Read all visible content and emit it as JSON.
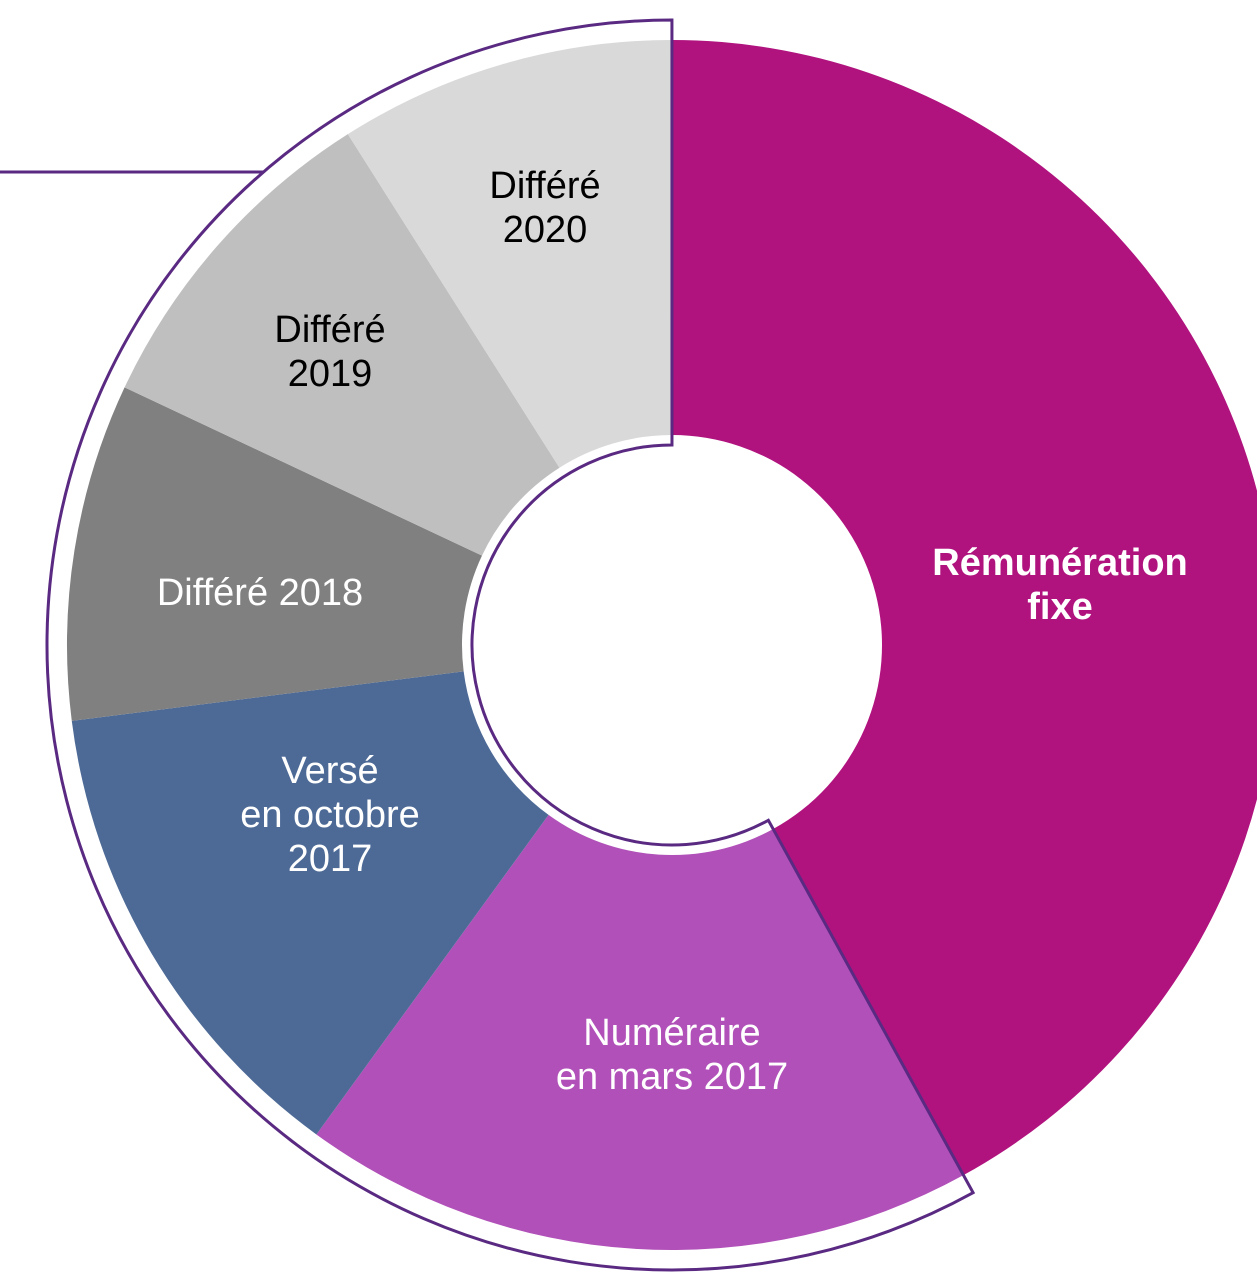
{
  "chart_data": {
    "type": "donut",
    "categories": [
      "Rémunération\nfixe",
      "Numéraire\nen mars 2017",
      "Versé\nen octobre\n2017",
      "Différé 2018",
      "Différé\n2019",
      "Différé\n2020"
    ],
    "values": [
      42,
      18,
      13,
      9,
      9,
      9
    ],
    "colors": [
      "#b0127e",
      "#b050b8",
      "#4d6a96",
      "#808080",
      "#bfbfbf",
      "#d9d9d9"
    ],
    "label_colors": [
      "#ffffff",
      "#ffffff",
      "#ffffff",
      "#ffffff",
      "#000000",
      "#000000"
    ]
  }
}
